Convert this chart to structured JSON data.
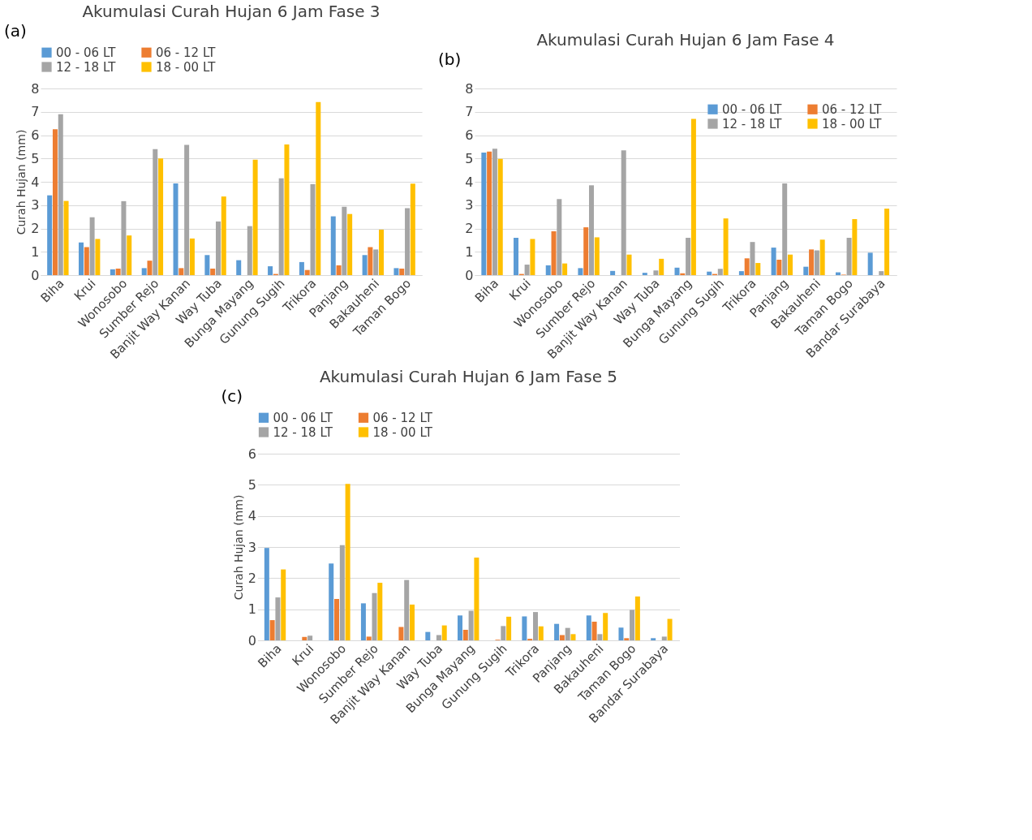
{
  "chart_data": [
    {
      "type": "bar",
      "title": "Akumulasi Curah Hujan 6 Jam Fase 3",
      "ylabel": "Curah Hujan (mm)",
      "annotations": [
        "(a)"
      ],
      "categories": [
        "Biha",
        "Krui",
        "Wonosobo",
        "Sumber Rejo",
        "Banjit Way Kanan",
        "Way Tuba",
        "Bunga Mayang",
        "Gunung Sugih",
        "Trikora",
        "Panjang",
        "Bakauheni",
        "Taman Bogo"
      ],
      "series": [
        {
          "name": "00 - 06 LT",
          "color": "#5b9bd5",
          "values": [
            3.42,
            1.4,
            0.25,
            0.3,
            3.93,
            0.86,
            0.64,
            0.38,
            0.56,
            2.52,
            0.86,
            0.3
          ]
        },
        {
          "name": "06 - 12 LT",
          "color": "#ed7d31",
          "values": [
            6.25,
            1.2,
            0.28,
            0.62,
            0.3,
            0.28,
            null,
            0.05,
            0.22,
            0.42,
            1.2,
            0.28
          ]
        },
        {
          "name": "12 - 18 LT",
          "color": "#a5a5a5",
          "values": [
            6.9,
            2.48,
            3.17,
            5.4,
            5.58,
            2.3,
            2.1,
            4.15,
            3.9,
            2.93,
            1.1,
            2.87
          ]
        },
        {
          "name": "18 - 00 LT",
          "color": "#ffc000",
          "values": [
            3.18,
            1.55,
            1.7,
            5.0,
            1.57,
            3.37,
            4.95,
            5.6,
            7.42,
            2.62,
            1.95,
            3.92
          ]
        }
      ],
      "ylim": [
        0,
        8
      ],
      "yticks": [
        0,
        1,
        2,
        3,
        4,
        5,
        6,
        7,
        8
      ],
      "grid": "y",
      "legend": "top"
    },
    {
      "type": "bar",
      "title": "Akumulasi Curah Hujan 6 Jam Fase 4",
      "annotations": [
        "(b)"
      ],
      "categories": [
        "Biha",
        "Krui",
        "Wonosobo",
        "Sumber Rejo",
        "Banjit Way Kanan",
        "Way Tuba",
        "Bunga Mayang",
        "Gunung Sugih",
        "Trikora",
        "Panjang",
        "Bakauheni",
        "Taman Bogo",
        "Bandar Surabaya"
      ],
      "series": [
        {
          "name": "00 - 06 LT",
          "color": "#5b9bd5",
          "values": [
            5.25,
            1.6,
            0.42,
            0.3,
            0.18,
            0.1,
            0.32,
            0.15,
            0.17,
            1.18,
            0.36,
            0.12,
            0.96
          ]
        },
        {
          "name": "06 - 12 LT",
          "color": "#ed7d31",
          "values": [
            5.3,
            0.05,
            1.88,
            2.05,
            null,
            0,
            0.08,
            0.05,
            0.72,
            0.66,
            1.1,
            0.02,
            0
          ]
        },
        {
          "name": "12 - 18 LT",
          "color": "#a5a5a5",
          "values": [
            5.42,
            0.45,
            3.26,
            3.85,
            5.35,
            0.2,
            1.6,
            0.27,
            1.42,
            3.93,
            1.06,
            1.6,
            0.17
          ]
        },
        {
          "name": "18 - 00 LT",
          "color": "#ffc000",
          "values": [
            4.98,
            1.55,
            0.5,
            1.62,
            0.88,
            0.7,
            6.7,
            2.43,
            0.52,
            0.88,
            1.52,
            2.4,
            2.85
          ]
        }
      ],
      "ylim": [
        0,
        8
      ],
      "yticks": [
        0,
        1,
        2,
        3,
        4,
        5,
        6,
        7,
        8
      ],
      "grid": "y",
      "legend": "top right"
    },
    {
      "type": "bar",
      "title": "Akumulasi Curah Hujan 6 Jam Fase 5",
      "ylabel": "Curah Hujan (mm)",
      "annotations": [
        "(c)"
      ],
      "categories": [
        "Biha",
        "Krui",
        "Wonosobo",
        "Sumber Rejo",
        "Banjit Way Kanan",
        "Way Tuba",
        "Bunga Mayang",
        "Gunung Sugih",
        "Trikora",
        "Panjang",
        "Bakauheni",
        "Taman Bogo",
        "Bandar Surabaya"
      ],
      "series": [
        {
          "name": "00 - 06 LT",
          "color": "#5b9bd5",
          "values": [
            2.97,
            0,
            2.47,
            1.19,
            0,
            0.27,
            0.8,
            0,
            0.77,
            0.53,
            0.8,
            0.41,
            0.07
          ]
        },
        {
          "name": "06 - 12 LT",
          "color": "#ed7d31",
          "values": [
            0.65,
            0.11,
            1.33,
            0.12,
            0.43,
            0,
            0.34,
            0.02,
            0.05,
            0.17,
            0.6,
            0.07,
            0
          ]
        },
        {
          "name": "12 - 18 LT",
          "color": "#a5a5a5",
          "values": [
            1.38,
            0.15,
            3.06,
            1.52,
            1.94,
            0.17,
            0.95,
            0.46,
            0.91,
            0.4,
            0.2,
            0.98,
            0.12
          ]
        },
        {
          "name": "18 - 00 LT",
          "color": "#ffc000",
          "values": [
            2.28,
            0,
            5.03,
            1.85,
            1.15,
            0.48,
            2.66,
            0.76,
            0.45,
            0.2,
            0.88,
            1.41,
            0.69
          ]
        }
      ],
      "ylim": [
        0,
        6
      ],
      "yticks": [
        0,
        1,
        2,
        3,
        4,
        5,
        6
      ],
      "grid": "y",
      "legend": "top"
    }
  ]
}
